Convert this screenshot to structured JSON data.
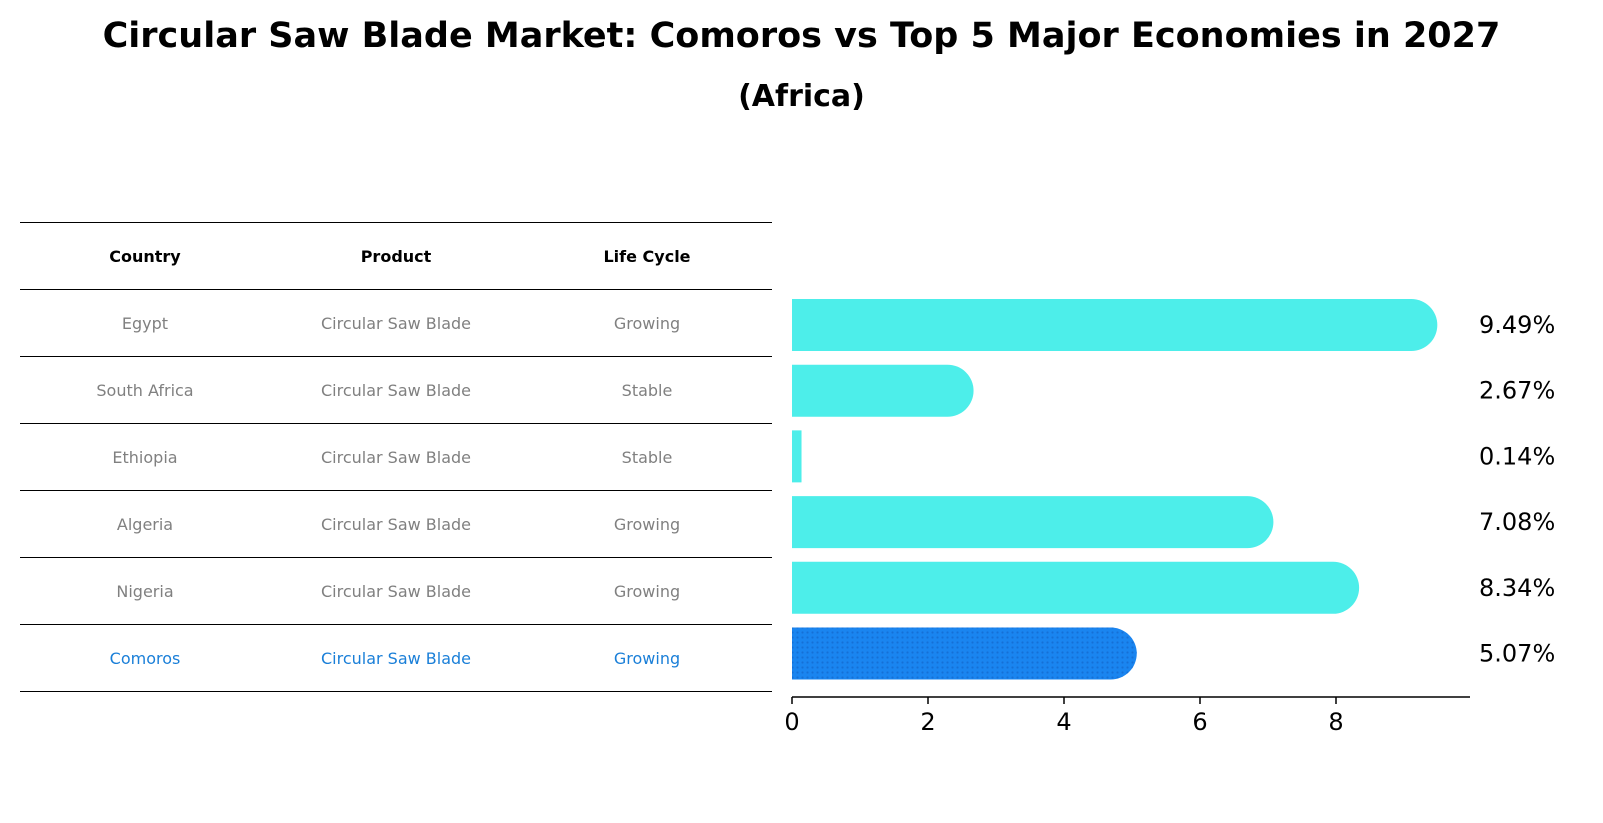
{
  "title": "Circular Saw Blade Market: Comoros vs Top 5 Major Economies in 2027",
  "subtitle": "(Africa)",
  "table": {
    "headers": [
      "Country",
      "Product",
      "Life Cycle"
    ],
    "rows": [
      {
        "country": "Egypt",
        "product": "Circular Saw Blade",
        "life_cycle": "Growing"
      },
      {
        "country": "South Africa",
        "product": "Circular Saw Blade",
        "life_cycle": "Stable"
      },
      {
        "country": "Ethiopia",
        "product": "Circular Saw Blade",
        "life_cycle": "Stable"
      },
      {
        "country": "Algeria",
        "product": "Circular Saw Blade",
        "life_cycle": "Growing"
      },
      {
        "country": "Nigeria",
        "product": "Circular Saw Blade",
        "life_cycle": "Growing"
      },
      {
        "country": "Comoros",
        "product": "Circular Saw Blade",
        "life_cycle": "Growing",
        "highlight": true
      }
    ]
  },
  "chart_data": {
    "type": "bar",
    "orientation": "horizontal",
    "categories": [
      "Egypt",
      "South Africa",
      "Ethiopia",
      "Algeria",
      "Nigeria",
      "Comoros"
    ],
    "values": [
      9.49,
      2.67,
      0.14,
      7.08,
      8.34,
      5.07
    ],
    "value_labels": [
      "9.49%",
      "2.67%",
      "0.14%",
      "7.08%",
      "8.34%",
      "5.07%"
    ],
    "highlight_category": "Comoros",
    "xlim": [
      0,
      10
    ],
    "xticks": [
      0,
      2,
      4,
      6,
      8
    ],
    "grid": false,
    "colors": {
      "default": "#4deeea",
      "highlight": "#1a85f0",
      "highlight_dots": "#1570d6"
    }
  }
}
